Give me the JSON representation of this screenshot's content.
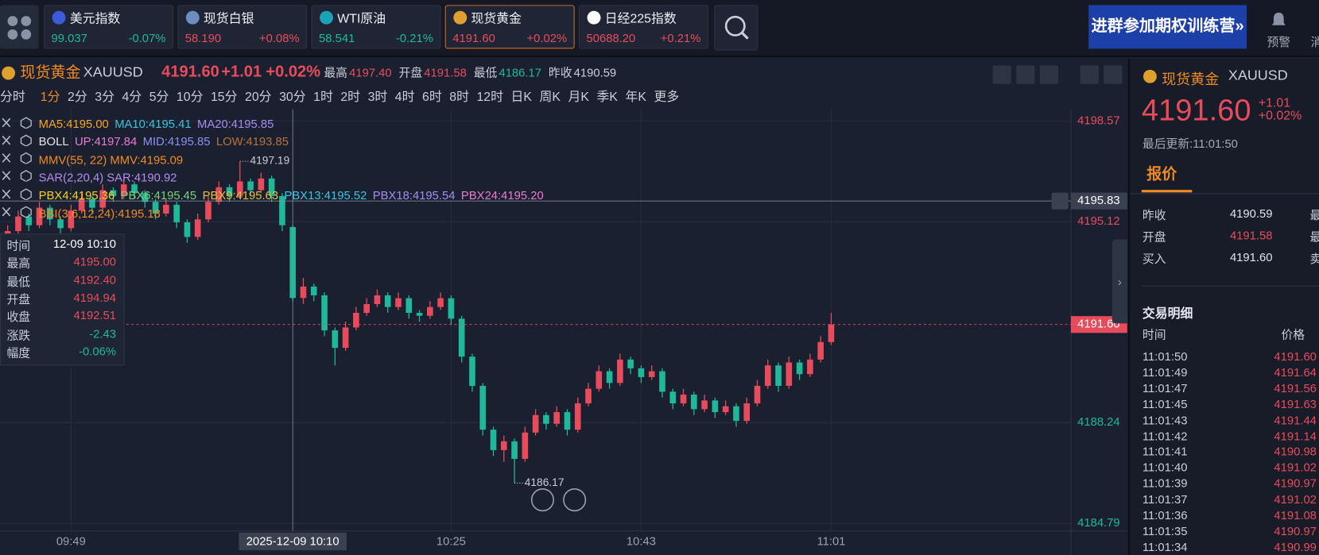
{
  "tickers": [
    {
      "name": "美元指数",
      "price": "99.037",
      "change": "-0.07%",
      "color": "#1fb89a",
      "icon": "#3b5bdb"
    },
    {
      "name": "现货白银",
      "price": "58.190",
      "change": "+0.08%",
      "color": "#e84c5c",
      "icon": "#6c8ebf"
    },
    {
      "name": "WTI原油",
      "price": "58.541",
      "change": "-0.21%",
      "color": "#1fb89a",
      "icon": "#1aa3b8"
    },
    {
      "name": "现货黄金",
      "price": "4191.60",
      "change": "+0.02%",
      "color": "#e84c5c",
      "icon": "#e0a030",
      "active": true
    },
    {
      "name": "日经225指数",
      "price": "50688.20",
      "change": "+0.21%",
      "color": "#e84c5c",
      "icon": "#ffffff"
    }
  ],
  "banner": "进群参加期权训练营»",
  "alert": "预警",
  "message_partial": "消",
  "header": {
    "name": "现货黄金",
    "symbol": "XAUUSD",
    "price": "4191.60",
    "change": "+1.01",
    "pct": "+0.02%",
    "stats": [
      {
        "label": "最高",
        "value": "4197.40",
        "color": "#e84c5c"
      },
      {
        "label": "开盘",
        "value": "4191.58",
        "color": "#e84c5c"
      },
      {
        "label": "最低",
        "value": "4186.17",
        "color": "#1fb89a"
      },
      {
        "label": "昨收",
        "value": "4190.59",
        "color": "#c9ced8"
      }
    ]
  },
  "periods": [
    {
      "label": "分时"
    },
    {
      "label": "1分",
      "active": true
    },
    {
      "label": "2分"
    },
    {
      "label": "3分"
    },
    {
      "label": "4分"
    },
    {
      "label": "5分"
    },
    {
      "label": "10分"
    },
    {
      "label": "15分"
    },
    {
      "label": "20分"
    },
    {
      "label": "30分"
    },
    {
      "label": "1时"
    },
    {
      "label": "2时"
    },
    {
      "label": "3时"
    },
    {
      "label": "4时"
    },
    {
      "label": "6时"
    },
    {
      "label": "8时"
    },
    {
      "label": "12时"
    },
    {
      "label": "日K"
    },
    {
      "label": "周K"
    },
    {
      "label": "月K"
    },
    {
      "label": "季K"
    },
    {
      "label": "年K"
    },
    {
      "label": "更多"
    }
  ],
  "indicators": [
    [
      {
        "text": "MA5:4195.00",
        "color": "#f5a623"
      },
      {
        "text": "MA10:4195.41",
        "color": "#39c5e0"
      },
      {
        "text": "MA20:4195.85",
        "color": "#a58cf0"
      }
    ],
    [
      {
        "text": "BOLL",
        "color": "#e6e6e6"
      },
      {
        "text": "UP:4197.84",
        "color": "#e87bd5"
      },
      {
        "text": "MID:4195.85",
        "color": "#8b8ff0"
      },
      {
        "text": "LOW:4193.85",
        "color": "#b5733a"
      }
    ],
    [
      {
        "text": "MMV(55, 22) MMV:4195.09",
        "color": "#f08a24"
      }
    ],
    [
      {
        "text": "SAR(2,20,4) SAR:4190.92",
        "color": "#b28cf0"
      }
    ],
    [
      {
        "text": "PBX4:4195.36",
        "color": "#f5d020"
      },
      {
        "text": "PBX6:4195.45",
        "color": "#7ad07a"
      },
      {
        "text": "PBX9:4195.63",
        "color": "#e0c040"
      },
      {
        "text": "PBX13:4195.52",
        "color": "#39c5e0"
      },
      {
        "text": "PBX18:4195.54",
        "color": "#a58cf0"
      },
      {
        "text": "PBX24:4195.20",
        "color": "#e87bd5"
      }
    ],
    [
      {
        "text": "BBI(3,6,12,24):4195.18",
        "color": "#f08a24"
      }
    ]
  ],
  "tooltip": [
    {
      "label": "时间",
      "value": "12-09 10:10",
      "color": "#ffffff"
    },
    {
      "label": "最高",
      "value": "4195.00",
      "color": "#e84c5c"
    },
    {
      "label": "最低",
      "value": "4192.40",
      "color": "#e84c5c"
    },
    {
      "label": "开盘",
      "value": "4194.94",
      "color": "#e84c5c"
    },
    {
      "label": "收盘",
      "value": "4192.51",
      "color": "#e84c5c"
    },
    {
      "label": "涨跌",
      "value": "-2.43",
      "color": "#1fb89a"
    },
    {
      "label": "幅度",
      "value": "-0.06%",
      "color": "#1fb89a"
    }
  ],
  "chart_data": {
    "type": "candlestick",
    "categories": [
      null,
      null,
      null,
      null,
      null,
      null,
      "09:49",
      null,
      null,
      null,
      null,
      null,
      null,
      null,
      null,
      null,
      null,
      null,
      null,
      null,
      null,
      null,
      null,
      null,
      null,
      null,
      null,
      null,
      null,
      null,
      null,
      null,
      null,
      null,
      null,
      null,
      null,
      null,
      null,
      null,
      null,
      null,
      "10:25",
      null,
      null,
      null,
      null,
      null,
      null,
      null,
      null,
      null,
      null,
      null,
      null,
      null,
      null,
      null,
      null,
      null,
      "10:43",
      null,
      null,
      null,
      null,
      null,
      null,
      null,
      null,
      null,
      null,
      null,
      null,
      null,
      null,
      null,
      null,
      null,
      "11:01"
    ],
    "ohlc": [
      [
        4194.6,
        4195.0,
        4194.4,
        4194.8
      ],
      [
        4194.8,
        4195.5,
        4194.6,
        4195.3
      ],
      [
        4195.3,
        4195.4,
        4194.8,
        4195.0
      ],
      [
        4195.0,
        4195.8,
        4194.9,
        4195.6
      ],
      [
        4195.6,
        4195.7,
        4195.0,
        4195.2
      ],
      [
        4195.2,
        4195.3,
        4194.7,
        4194.9
      ],
      [
        4194.9,
        4195.7,
        4194.8,
        4195.5
      ],
      [
        4195.5,
        4196.1,
        4195.4,
        4195.9
      ],
      [
        4195.9,
        4196.0,
        4195.4,
        4195.6
      ],
      [
        4195.6,
        4196.4,
        4195.5,
        4196.2
      ],
      [
        4196.2,
        4196.3,
        4195.8,
        4196.0
      ],
      [
        4196.0,
        4196.6,
        4195.9,
        4196.4
      ],
      [
        4196.4,
        4196.5,
        4195.9,
        4196.1
      ],
      [
        4196.1,
        4196.2,
        4195.6,
        4195.8
      ],
      [
        4195.8,
        4195.9,
        4195.2,
        4195.4
      ],
      [
        4195.4,
        4195.9,
        4195.3,
        4195.7
      ],
      [
        4195.7,
        4195.8,
        4194.9,
        4195.1
      ],
      [
        4195.1,
        4195.2,
        4194.4,
        4194.6
      ],
      [
        4194.6,
        4195.4,
        4194.5,
        4195.2
      ],
      [
        4195.2,
        4196.0,
        4195.1,
        4195.8
      ],
      [
        4195.8,
        4196.5,
        4195.7,
        4196.3
      ],
      [
        4196.3,
        4196.4,
        4195.8,
        4196.0
      ],
      [
        4196.0,
        4197.19,
        4195.9,
        4196.5
      ],
      [
        4196.5,
        4196.6,
        4196.0,
        4196.2
      ],
      [
        4196.2,
        4196.8,
        4196.1,
        4196.6
      ],
      [
        4196.6,
        4196.7,
        4195.8,
        4196.0
      ],
      [
        4196.0,
        4196.1,
        4194.8,
        4195.0
      ],
      [
        4194.94,
        4195.0,
        4192.4,
        4192.51
      ],
      [
        4192.51,
        4193.2,
        4192.3,
        4192.9
      ],
      [
        4192.9,
        4193.0,
        4192.4,
        4192.6
      ],
      [
        4192.6,
        4192.7,
        4191.2,
        4191.4
      ],
      [
        4191.4,
        4191.5,
        4190.2,
        4190.8
      ],
      [
        4190.8,
        4191.7,
        4190.7,
        4191.5
      ],
      [
        4191.5,
        4192.2,
        4191.4,
        4192.0
      ],
      [
        4192.0,
        4192.5,
        4191.9,
        4192.3
      ],
      [
        4192.3,
        4192.8,
        4192.2,
        4192.6
      ],
      [
        4192.6,
        4192.7,
        4192.0,
        4192.2
      ],
      [
        4192.2,
        4192.7,
        4192.1,
        4192.5
      ],
      [
        4192.5,
        4192.6,
        4191.8,
        4192.0
      ],
      [
        4192.0,
        4192.1,
        4191.7,
        4191.9
      ],
      [
        4191.9,
        4192.4,
        4191.8,
        4192.2
      ],
      [
        4192.2,
        4192.7,
        4192.1,
        4192.5
      ],
      [
        4192.5,
        4192.6,
        4191.6,
        4191.8
      ],
      [
        4191.8,
        4191.9,
        4190.3,
        4190.5
      ],
      [
        4190.5,
        4190.6,
        4189.3,
        4189.5
      ],
      [
        4189.5,
        4189.6,
        4187.8,
        4188.0
      ],
      [
        4188.0,
        4188.1,
        4187.1,
        4187.3
      ],
      [
        4187.3,
        4187.8,
        4186.9,
        4187.6
      ],
      [
        4187.6,
        4187.7,
        4186.17,
        4187.0
      ],
      [
        4187.0,
        4188.1,
        4186.9,
        4187.9
      ],
      [
        4187.9,
        4188.7,
        4187.8,
        4188.5
      ],
      [
        4188.5,
        4188.6,
        4188.0,
        4188.2
      ],
      [
        4188.2,
        4188.8,
        4188.1,
        4188.6
      ],
      [
        4188.6,
        4188.7,
        4187.8,
        4188.0
      ],
      [
        4188.0,
        4189.1,
        4187.9,
        4188.9
      ],
      [
        4188.9,
        4189.6,
        4188.8,
        4189.4
      ],
      [
        4189.4,
        4190.2,
        4189.3,
        4190.0
      ],
      [
        4190.0,
        4190.1,
        4189.4,
        4189.6
      ],
      [
        4189.6,
        4190.6,
        4189.5,
        4190.4
      ],
      [
        4190.4,
        4190.5,
        4189.9,
        4190.1
      ],
      [
        4190.1,
        4190.2,
        4189.6,
        4189.8
      ],
      [
        4189.8,
        4190.2,
        4189.7,
        4190.0
      ],
      [
        4190.0,
        4190.1,
        4189.1,
        4189.3
      ],
      [
        4189.3,
        4189.4,
        4188.7,
        4188.9
      ],
      [
        4188.9,
        4189.4,
        4188.8,
        4189.2
      ],
      [
        4189.2,
        4189.3,
        4188.5,
        4188.7
      ],
      [
        4188.7,
        4189.2,
        4188.6,
        4189.0
      ],
      [
        4189.0,
        4189.1,
        4188.4,
        4188.6
      ],
      [
        4188.6,
        4189.0,
        4188.5,
        4188.8
      ],
      [
        4188.8,
        4188.9,
        4188.1,
        4188.3
      ],
      [
        4188.3,
        4189.1,
        4188.2,
        4188.9
      ],
      [
        4188.9,
        4189.7,
        4188.8,
        4189.5
      ],
      [
        4189.5,
        4190.4,
        4189.4,
        4190.2
      ],
      [
        4190.2,
        4190.3,
        4189.3,
        4189.5
      ],
      [
        4189.5,
        4190.5,
        4189.4,
        4190.3
      ],
      [
        4190.3,
        4190.4,
        4189.7,
        4189.9
      ],
      [
        4189.9,
        4190.6,
        4189.8,
        4190.4
      ],
      [
        4190.4,
        4191.2,
        4190.3,
        4191.0
      ],
      [
        4191.0,
        4192.0,
        4190.9,
        4191.6
      ]
    ],
    "ylim": [
      4184.79,
      4198.57
    ],
    "yticks": [
      4198.57,
      4195.12,
      4188.24,
      4184.79
    ],
    "ytick_colors": [
      "#e84c5c",
      "#e84c5c",
      "#1fb89a",
      "#1fb89a"
    ],
    "last_price": {
      "value": 4191.6,
      "label": "4191.60"
    },
    "crosshair_price": 4195.83,
    "crosshair_time": "2025-12-09 10:10",
    "crosshair_index": 27,
    "max_mark": 4197.19,
    "min_mark": 4186.17,
    "up_color": "#e84c5c",
    "down_color": "#1fb89a",
    "grid": true
  },
  "panel": {
    "name": "现货黄金",
    "symbol": "XAUUSD",
    "price": "4191.60",
    "change": "+1.01",
    "pct": "+0.02%",
    "updated": "最后更新:11:01:50",
    "tab": "报价",
    "quotes": [
      {
        "label": "昨收",
        "value": "4190.59",
        "color": "#dfe3ea"
      },
      {
        "label": "开盘",
        "value": "4191.58",
        "color": "#e84c5c"
      },
      {
        "label": "买入",
        "value": "4191.60",
        "color": "#dfe3ea"
      }
    ],
    "partial": [
      "最",
      "最",
      "卖"
    ],
    "trades_title": "交易明细",
    "col_time": "时间",
    "col_price": "价格",
    "trades": [
      [
        "11:01:50",
        "4191.60"
      ],
      [
        "11:01:49",
        "4191.64"
      ],
      [
        "11:01:47",
        "4191.56"
      ],
      [
        "11:01:45",
        "4191.63"
      ],
      [
        "11:01:43",
        "4191.44"
      ],
      [
        "11:01:42",
        "4191.14"
      ],
      [
        "11:01:41",
        "4190.98"
      ],
      [
        "11:01:40",
        "4191.02"
      ],
      [
        "11:01:39",
        "4190.97"
      ],
      [
        "11:01:37",
        "4191.02"
      ],
      [
        "11:01:36",
        "4191.08"
      ],
      [
        "11:01:35",
        "4190.97"
      ],
      [
        "11:01:34",
        "4190.99"
      ]
    ]
  }
}
